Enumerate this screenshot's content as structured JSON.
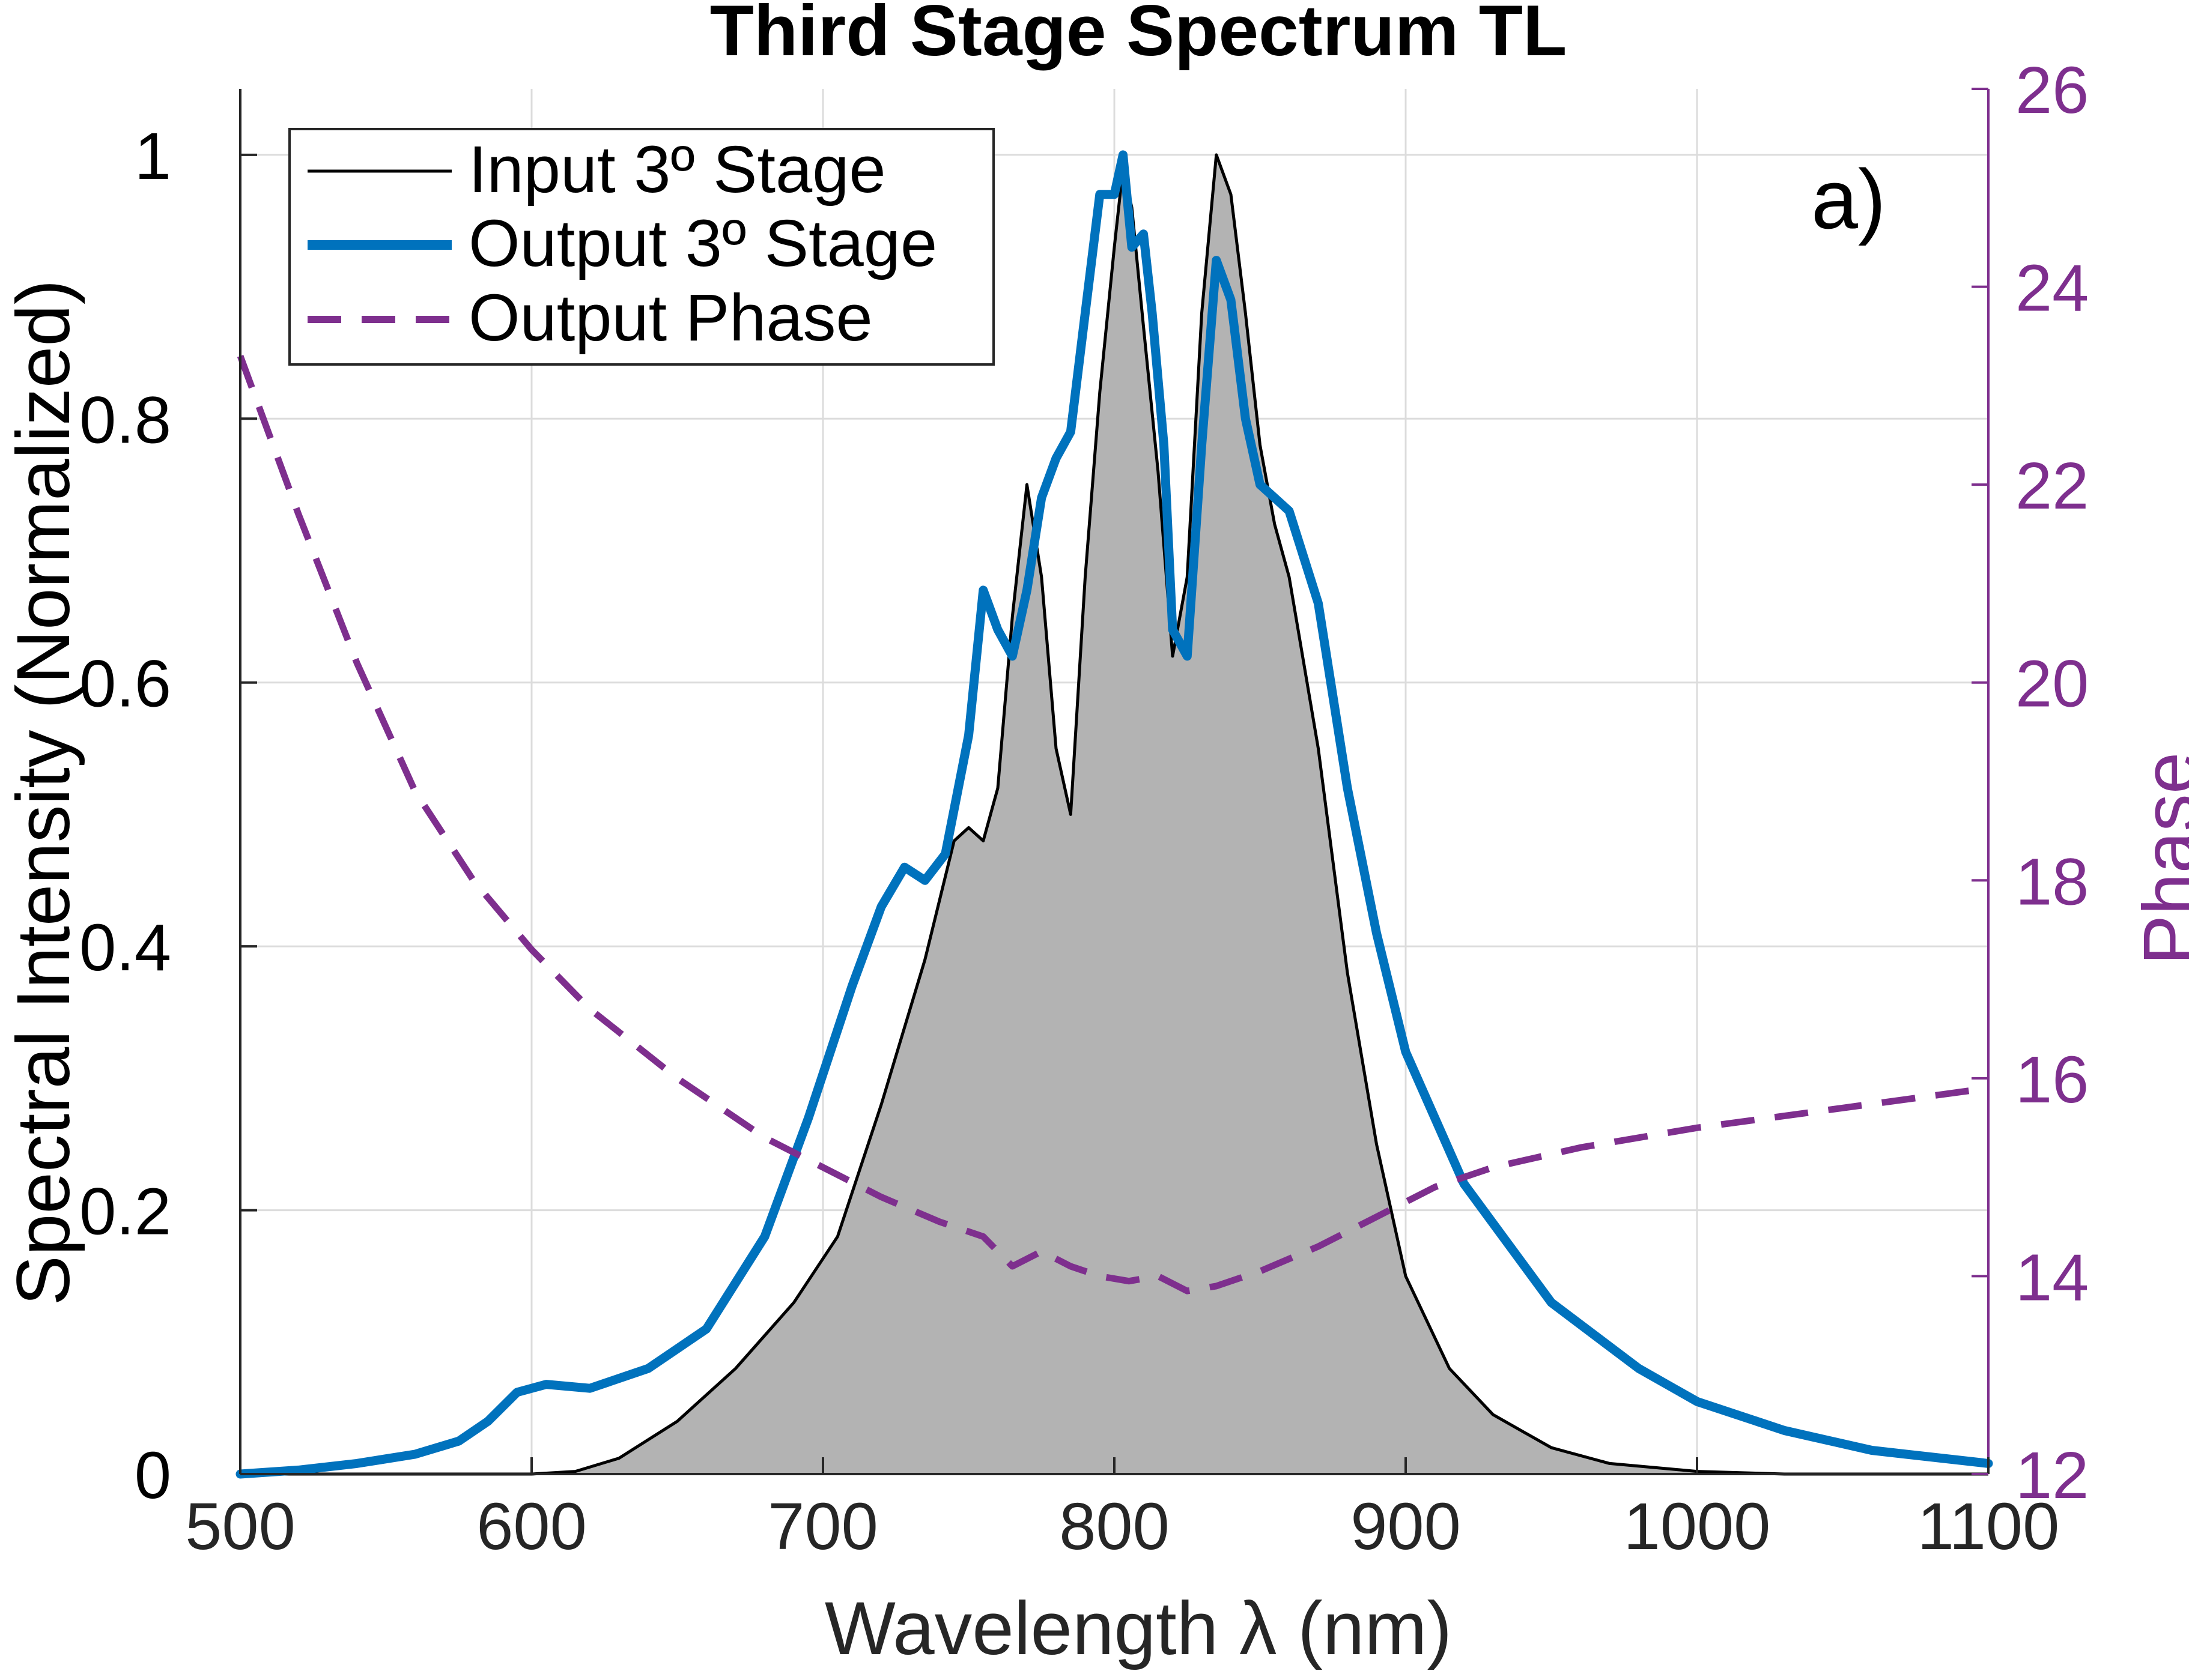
{
  "chart_data": {
    "type": "line",
    "title": "Third Stage Spectrum TL",
    "xlabel": "Wavelength λ (nm)",
    "ylabel": "Spectral Intensity (Normalized)",
    "ylabel_right": "Phase",
    "annotation": "a)",
    "xlim": [
      500,
      1100
    ],
    "ylim": [
      0,
      1.05
    ],
    "ylim_right": [
      12,
      26
    ],
    "xticks": [
      500,
      600,
      700,
      800,
      900,
      1000,
      1100
    ],
    "yticks": [
      0,
      0.2,
      0.4,
      0.6,
      0.8,
      1
    ],
    "ytick_labels": [
      "0",
      "0.2",
      "0.4",
      "0.6",
      "0.8",
      "1"
    ],
    "yticks_right": [
      12,
      14,
      16,
      18,
      20,
      22,
      24,
      26
    ],
    "grid": true,
    "legend": {
      "position": "top-left",
      "entries": [
        "Input 3º Stage",
        "Output 3º Stage",
        "Output Phase"
      ]
    },
    "colors": {
      "input": "#000000",
      "input_fill": "#b3b3b3",
      "output": "#0072bd",
      "phase": "#7e2f8e",
      "grid": "#dcdcdc",
      "axis": "#262626"
    },
    "series": [
      {
        "name": "Input 3º Stage",
        "axis": "left",
        "filled": true,
        "x": [
          500,
          600,
          615,
          630,
          650,
          670,
          690,
          705,
          720,
          735,
          745,
          750,
          755,
          760,
          765,
          770,
          775,
          780,
          785,
          790,
          795,
          800,
          803,
          806,
          810,
          815,
          820,
          825,
          830,
          835,
          840,
          845,
          850,
          855,
          860,
          870,
          880,
          890,
          900,
          915,
          930,
          950,
          970,
          1000,
          1030,
          1100
        ],
        "values": [
          0,
          0,
          0.002,
          0.012,
          0.04,
          0.08,
          0.13,
          0.18,
          0.28,
          0.39,
          0.48,
          0.49,
          0.48,
          0.52,
          0.65,
          0.75,
          0.68,
          0.55,
          0.5,
          0.68,
          0.82,
          0.93,
          0.99,
          0.96,
          0.87,
          0.76,
          0.62,
          0.68,
          0.88,
          1.0,
          0.97,
          0.88,
          0.78,
          0.72,
          0.68,
          0.55,
          0.38,
          0.25,
          0.15,
          0.08,
          0.045,
          0.02,
          0.008,
          0.002,
          0,
          0
        ]
      },
      {
        "name": "Output 3º Stage",
        "axis": "left",
        "x": [
          500,
          520,
          540,
          560,
          575,
          585,
          595,
          605,
          620,
          640,
          660,
          680,
          695,
          710,
          720,
          728,
          735,
          742,
          750,
          755,
          760,
          765,
          770,
          775,
          780,
          785,
          790,
          795,
          800,
          803,
          806,
          810,
          813,
          817,
          820,
          825,
          830,
          835,
          840,
          845,
          850,
          855,
          860,
          870,
          880,
          890,
          900,
          920,
          950,
          980,
          1000,
          1030,
          1060,
          1100
        ],
        "values": [
          0,
          0.003,
          0.008,
          0.015,
          0.025,
          0.04,
          0.062,
          0.068,
          0.065,
          0.08,
          0.11,
          0.18,
          0.27,
          0.37,
          0.43,
          0.46,
          0.45,
          0.47,
          0.56,
          0.67,
          0.64,
          0.62,
          0.67,
          0.74,
          0.77,
          0.79,
          0.88,
          0.97,
          0.97,
          1.0,
          0.93,
          0.94,
          0.88,
          0.78,
          0.64,
          0.62,
          0.78,
          0.92,
          0.89,
          0.8,
          0.75,
          0.74,
          0.73,
          0.66,
          0.52,
          0.41,
          0.32,
          0.22,
          0.13,
          0.08,
          0.055,
          0.033,
          0.018,
          0.008
        ]
      },
      {
        "name": "Output Phase",
        "axis": "right",
        "dashed": true,
        "x": [
          500,
          520,
          540,
          560,
          580,
          600,
          620,
          650,
          680,
          700,
          720,
          740,
          755,
          765,
          775,
          785,
          795,
          805,
          815,
          825,
          835,
          850,
          870,
          890,
          910,
          930,
          960,
          1000,
          1050,
          1100
        ],
        "values": [
          23.3,
          21.7,
          20.2,
          18.9,
          18.0,
          17.3,
          16.7,
          16.0,
          15.4,
          15.1,
          14.8,
          14.55,
          14.4,
          14.1,
          14.25,
          14.1,
          14.0,
          13.95,
          14.0,
          13.85,
          13.9,
          14.05,
          14.3,
          14.6,
          14.9,
          15.1,
          15.3,
          15.5,
          15.7,
          15.9
        ]
      }
    ]
  }
}
